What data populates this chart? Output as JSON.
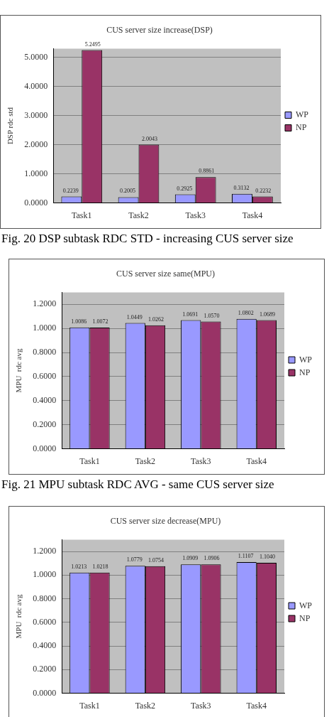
{
  "chart_data": [
    {
      "type": "bar",
      "title": "CUS server size increase(DSP)",
      "ylabel": "DSP rdc std",
      "categories": [
        "Task1",
        "Task2",
        "Task3",
        "Task4"
      ],
      "series": [
        {
          "name": "WP",
          "color": "#9999ff",
          "values": [
            0.2239,
            0.2005,
            0.2925,
            0.3132
          ],
          "value_labels": [
            "0.2239",
            "0.2005",
            "0.2925",
            "0.3132"
          ]
        },
        {
          "name": "NP",
          "color": "#993366",
          "values": [
            5.2495,
            2.0043,
            0.8861,
            0.2232
          ],
          "value_labels": [
            "5.2495",
            "2.0043",
            "0.8861",
            "0.2232"
          ]
        }
      ],
      "ylim": [
        0,
        5.3
      ],
      "yticks": [
        {
          "value": 0,
          "label": "0.0000"
        },
        {
          "value": 1,
          "label": "1.0000"
        },
        {
          "value": 2,
          "label": "2.0000"
        },
        {
          "value": 3,
          "label": "3.0000"
        },
        {
          "value": 4,
          "label": "4.0000"
        },
        {
          "value": 5,
          "label": "5.0000"
        }
      ],
      "grid": "y",
      "legend": "right",
      "annotations": [
        "Fig. 20 DSP subtask RDC STD - increasing CUS server size"
      ]
    },
    {
      "type": "bar",
      "title": "CUS server size same(MPU)",
      "ylabel": "MPU  rdc avg",
      "categories": [
        "Task1",
        "Task2",
        "Task3",
        "Task4"
      ],
      "series": [
        {
          "name": "WP",
          "color": "#9999ff",
          "values": [
            1.0086,
            1.0449,
            1.0691,
            1.0802
          ],
          "value_labels": [
            "1.0086",
            "1.0449",
            "1.0691",
            "1.0802"
          ]
        },
        {
          "name": "NP",
          "color": "#993366",
          "values": [
            1.0072,
            1.0262,
            1.057,
            1.0689
          ],
          "value_labels": [
            "1.0072",
            "1.0262",
            "1.0570",
            "1.0689"
          ]
        }
      ],
      "ylim": [
        0,
        1.3
      ],
      "yticks": [
        {
          "value": 0,
          "label": "0.0000"
        },
        {
          "value": 0.2,
          "label": "0.2000"
        },
        {
          "value": 0.4,
          "label": "0.4000"
        },
        {
          "value": 0.6,
          "label": "0.6000"
        },
        {
          "value": 0.8,
          "label": "0.8000"
        },
        {
          "value": 1,
          "label": "1.0000"
        },
        {
          "value": 1.2,
          "label": "1.2000"
        }
      ],
      "grid": "y",
      "legend": "right",
      "annotations": [
        "Fig. 21 MPU subtask RDC AVG - same CUS server size"
      ]
    },
    {
      "type": "bar",
      "title": "CUS server size decrease(MPU)",
      "ylabel": "MPU  rdc avg",
      "categories": [
        "Task1",
        "Task2",
        "Task3",
        "Task4"
      ],
      "series": [
        {
          "name": "WP",
          "color": "#9999ff",
          "values": [
            1.0213,
            1.0779,
            1.0909,
            1.1107
          ],
          "value_labels": [
            "1.0213",
            "1.0779",
            "1.0909",
            "1.1107"
          ]
        },
        {
          "name": "NP",
          "color": "#993366",
          "values": [
            1.0218,
            1.0754,
            1.0906,
            1.104
          ],
          "value_labels": [
            "1.0218",
            "1.0754",
            "1.0906",
            "1.1040"
          ]
        }
      ],
      "ylim": [
        0,
        1.3
      ],
      "yticks": [
        {
          "value": 0,
          "label": "0.0000"
        },
        {
          "value": 0.2,
          "label": "0.2000"
        },
        {
          "value": 0.4,
          "label": "0.4000"
        },
        {
          "value": 0.6,
          "label": "0.6000"
        },
        {
          "value": 0.8,
          "label": "0.8000"
        },
        {
          "value": 1,
          "label": "1.0000"
        },
        {
          "value": 1.2,
          "label": "1.2000"
        }
      ],
      "grid": "y",
      "legend": "right"
    }
  ]
}
